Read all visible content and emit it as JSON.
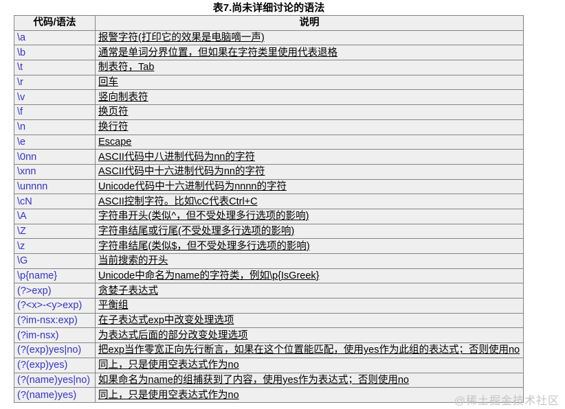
{
  "title": "表7.尚未详细讨论的语法",
  "table": {
    "headers": [
      "代码/语法",
      "说明"
    ],
    "rows": [
      {
        "code": "\\a",
        "desc": "报警字符(打印它的效果是电脑嘀一声)"
      },
      {
        "code": "\\b",
        "desc": "通常是单词分界位置，但如果在字符类里使用代表退格"
      },
      {
        "code": "\\t",
        "desc": "制表符，Tab"
      },
      {
        "code": "\\r",
        "desc": "回车"
      },
      {
        "code": "\\v",
        "desc": "竖向制表符"
      },
      {
        "code": "\\f",
        "desc": "换页符"
      },
      {
        "code": "\\n",
        "desc": "换行符"
      },
      {
        "code": "\\e",
        "desc": "Escape"
      },
      {
        "code": "\\0nn",
        "desc": "ASCII代码中八进制代码为nn的字符"
      },
      {
        "code": "\\xnn",
        "desc": "ASCII代码中十六进制代码为nn的字符"
      },
      {
        "code": "\\unnnn",
        "desc": "Unicode代码中十六进制代码为nnnn的字符"
      },
      {
        "code": "\\cN",
        "desc": "ASCII控制字符。比如\\cC代表Ctrl+C"
      },
      {
        "code": "\\A",
        "desc": "字符串开头(类似^，但不受处理多行选项的影响)"
      },
      {
        "code": "\\Z",
        "desc": "字符串结尾或行尾(不受处理多行选项的影响)"
      },
      {
        "code": "\\z",
        "desc": "字符串结尾(类似$，但不受处理多行选项的影响)"
      },
      {
        "code": "\\G",
        "desc": "当前搜索的开头"
      },
      {
        "code": "\\p{name}",
        "desc": "Unicode中命名为name的字符类，例如\\p{IsGreek}"
      },
      {
        "code": "(?>exp)",
        "desc": "贪婪子表达式"
      },
      {
        "code": "(?<x>-<y>exp)",
        "desc": "平衡组"
      },
      {
        "code": "(?im-nsx:exp)",
        "desc": "在子表达式exp中改变处理选项"
      },
      {
        "code": "(?im-nsx)",
        "desc": "为表达式后面的部分改变处理选项"
      },
      {
        "code": "(?(exp)yes|no)",
        "desc": "把exp当作零宽正向先行断言，如果在这个位置能匹配，使用yes作为此组的表达式；否则使用no"
      },
      {
        "code": "(?(exp)yes)",
        "desc": "同上，只是使用空表达式作为no"
      },
      {
        "code": "(?(name)yes|no)",
        "desc": "如果命名为name的组捕获到了内容，使用yes作为表达式；否则使用no"
      },
      {
        "code": "(?(name)yes)",
        "desc": "同上，只是使用空表达式作为no"
      }
    ]
  },
  "watermark": "@稀土掘金技术社区",
  "colors": {
    "code_text": "#3333cc",
    "cell_background": "#efefef",
    "cell_border": "#848484",
    "desc_text": "#000000",
    "watermark_text": "#c4c4c4"
  }
}
